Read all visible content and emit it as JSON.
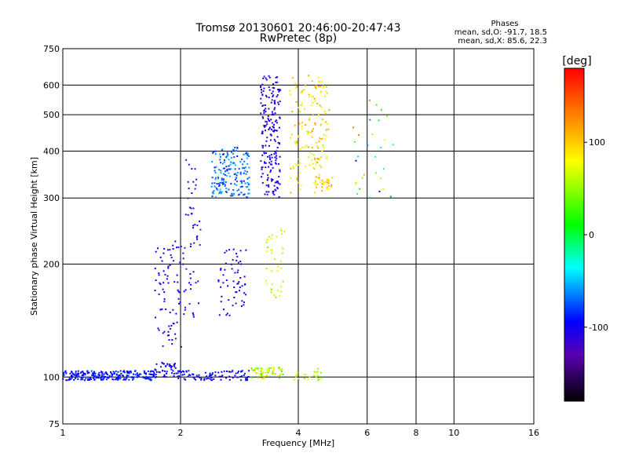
{
  "chart_data": {
    "type": "scatter",
    "title": "Tromsø 20130601 20:46:00-20:47:43",
    "subtitle": "RwPretec (8p)",
    "xlabel": "Frequency [MHz]",
    "ylabel": "Stationary phase Virtual Height [km]",
    "x_scale": "log",
    "y_scale": "log",
    "xlim": [
      1,
      16
    ],
    "ylim": [
      75,
      750
    ],
    "xticks": [
      1,
      2,
      4,
      6,
      8,
      10,
      16
    ],
    "yticks": [
      75,
      100,
      200,
      300,
      400,
      500,
      600,
      750
    ],
    "grid": true,
    "phase_stats": {
      "header": "Phases",
      "line_o": "mean, sd,O: -91.7, 18.5",
      "line_x": "mean, sd,X: 85.6, 22.3"
    },
    "colorbar": {
      "label": "[deg]",
      "range": [
        -180,
        180
      ],
      "ticks": [
        100,
        0,
        -100
      ]
    },
    "series": [
      {
        "name": "",
        "clusters": [
          {
            "x": [
              1.0,
              1.75
            ],
            "y": [
              98,
              104
            ],
            "phase": [
              -100,
              -80
            ],
            "n": 240
          },
          {
            "x": [
              1.72,
              1.95
            ],
            "y": [
              100,
              110
            ],
            "phase": [
              -110,
              -85
            ],
            "n": 40
          },
          {
            "x": [
              1.95,
              3.0
            ],
            "y": [
              98,
              104
            ],
            "phase": [
              -110,
              -85
            ],
            "n": 90
          },
          {
            "x": [
              3.0,
              3.7
            ],
            "y": [
              99,
              106
            ],
            "phase": [
              20,
              110
            ],
            "n": 60
          },
          {
            "x": [
              3.9,
              4.6
            ],
            "y": [
              98,
              106
            ],
            "phase": [
              40,
              100
            ],
            "n": 25
          },
          {
            "x": [
              1.72,
              2.05
            ],
            "y": [
              120,
              230
            ],
            "phase": [
              -115,
              -90
            ],
            "n": 80
          },
          {
            "x": [
              2.05,
              2.25
            ],
            "y": [
              140,
              380
            ],
            "phase": [
              -115,
              -80
            ],
            "n": 50
          },
          {
            "x": [
              2.5,
              2.95
            ],
            "y": [
              145,
              220
            ],
            "phase": [
              -115,
              -90
            ],
            "n": 60
          },
          {
            "x": [
              2.4,
              3.0
            ],
            "y": [
              300,
              410
            ],
            "phase": [
              -90,
              -50
            ],
            "n": 180
          },
          {
            "x": [
              3.2,
              3.6
            ],
            "y": [
              300,
              640
            ],
            "phase": [
              -120,
              -95
            ],
            "n": 200
          },
          {
            "x": [
              3.3,
              3.7
            ],
            "y": [
              160,
              250
            ],
            "phase": [
              40,
              90
            ],
            "n": 40
          },
          {
            "x": [
              3.8,
              4.8
            ],
            "y": [
              310,
              640
            ],
            "phase": [
              60,
              120
            ],
            "n": 160
          },
          {
            "x": [
              4.4,
              4.9
            ],
            "y": [
              320,
              340
            ],
            "phase": [
              80,
              110
            ],
            "n": 30
          },
          {
            "x": [
              5.5,
              7.0
            ],
            "y": [
              300,
              550
            ],
            "phase": [
              -100,
              150
            ],
            "n": 30
          }
        ]
      }
    ]
  }
}
